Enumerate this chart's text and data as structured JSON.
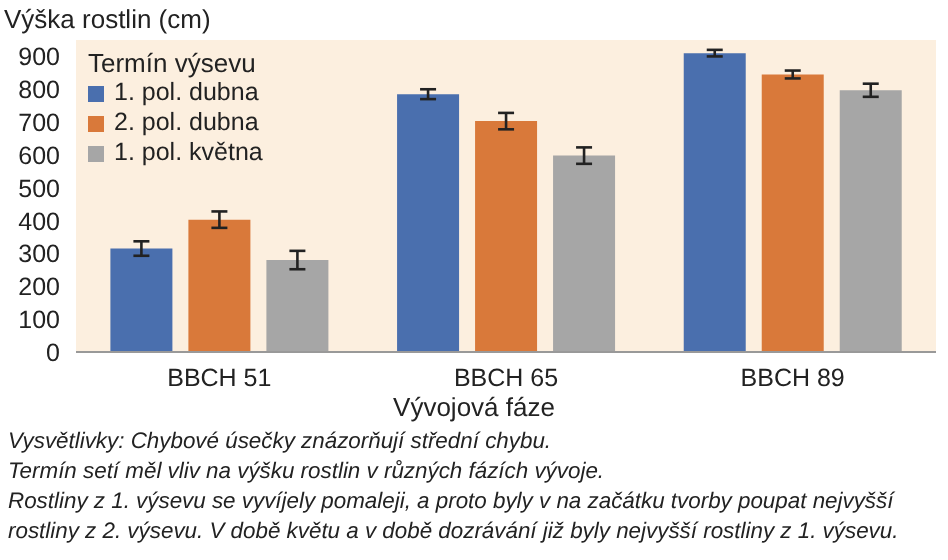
{
  "chart_data": {
    "type": "bar",
    "ylabel": "Výška rostlin (cm)",
    "xlabel": "Vývojová fáze",
    "legend_title": "Termín výsevu",
    "legend": "top left",
    "grid": false,
    "categories": [
      "BBCH 51",
      "BBCH 65",
      "BBCH 89"
    ],
    "series": [
      {
        "name": "1. pol. dubna",
        "color": "#4a6fae",
        "values": [
          315,
          785,
          910
        ],
        "errors": [
          22,
          15,
          10
        ]
      },
      {
        "name": "2. pol. dubna",
        "color": "#d9793a",
        "values": [
          403,
          703,
          845
        ],
        "errors": [
          25,
          25,
          12
        ]
      },
      {
        "name": "1. pol. května",
        "color": "#a6a6a6",
        "values": [
          280,
          598,
          797
        ],
        "errors": [
          28,
          25,
          20
        ]
      }
    ],
    "ylim": [
      0,
      950
    ],
    "yticks": [
      0,
      100,
      200,
      300,
      400,
      500,
      600,
      700,
      800,
      900
    ],
    "annotations": [
      "Vysvětlivky: Chybové úsečky znázorňují střední chybu.",
      "Termín setí měl vliv na výšku rostlin v různých fázích vývoje.",
      "Rostliny z 1. výsevu se vyvíjely pomaleji, a proto byly v na začátku tvorby poupat nejvyšší rostliny z 2. výsevu. V době květu a v době dozrávání již byly nejvyšší rostliny z 1. výsevu."
    ]
  }
}
